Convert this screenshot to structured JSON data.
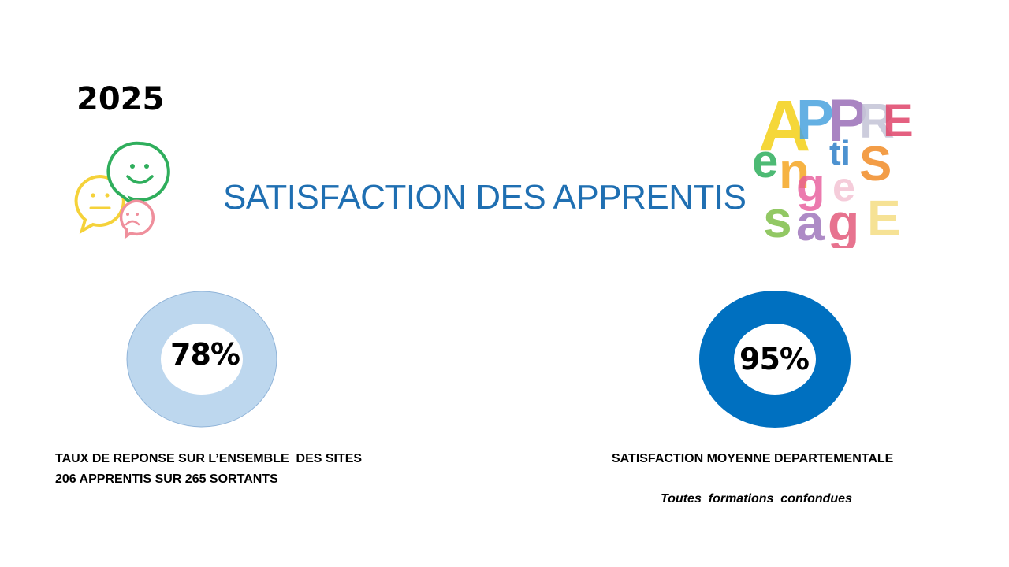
{
  "year": "2025",
  "title": "SATISFACTION DES APPRENTIS",
  "logo_text": "APPRENTISSAGE",
  "colors": {
    "title": "#1f6fb2",
    "light_ring": "#bdd7ee",
    "dark_ring": "#0070c0",
    "face_green": "#2fae5c",
    "face_yellow": "#f5d23a",
    "face_pink": "#ef8f9c"
  },
  "icons": [
    "smiley-happy-icon",
    "smiley-neutral-icon",
    "smiley-sad-icon"
  ],
  "stats": [
    {
      "value": "78%",
      "percent": 78,
      "caption_lines": [
        "TAUX DE REPONSE SUR L’ENSEMBLE  DES SITES",
        "206 APPRENTIS SUR 265 SORTANTS"
      ]
    },
    {
      "value": "95%",
      "percent": 95,
      "caption_lines": [
        "SATISFACTION MOYENNE DEPARTEMENTALE"
      ],
      "note": "Toutes  formations  confondues"
    }
  ]
}
